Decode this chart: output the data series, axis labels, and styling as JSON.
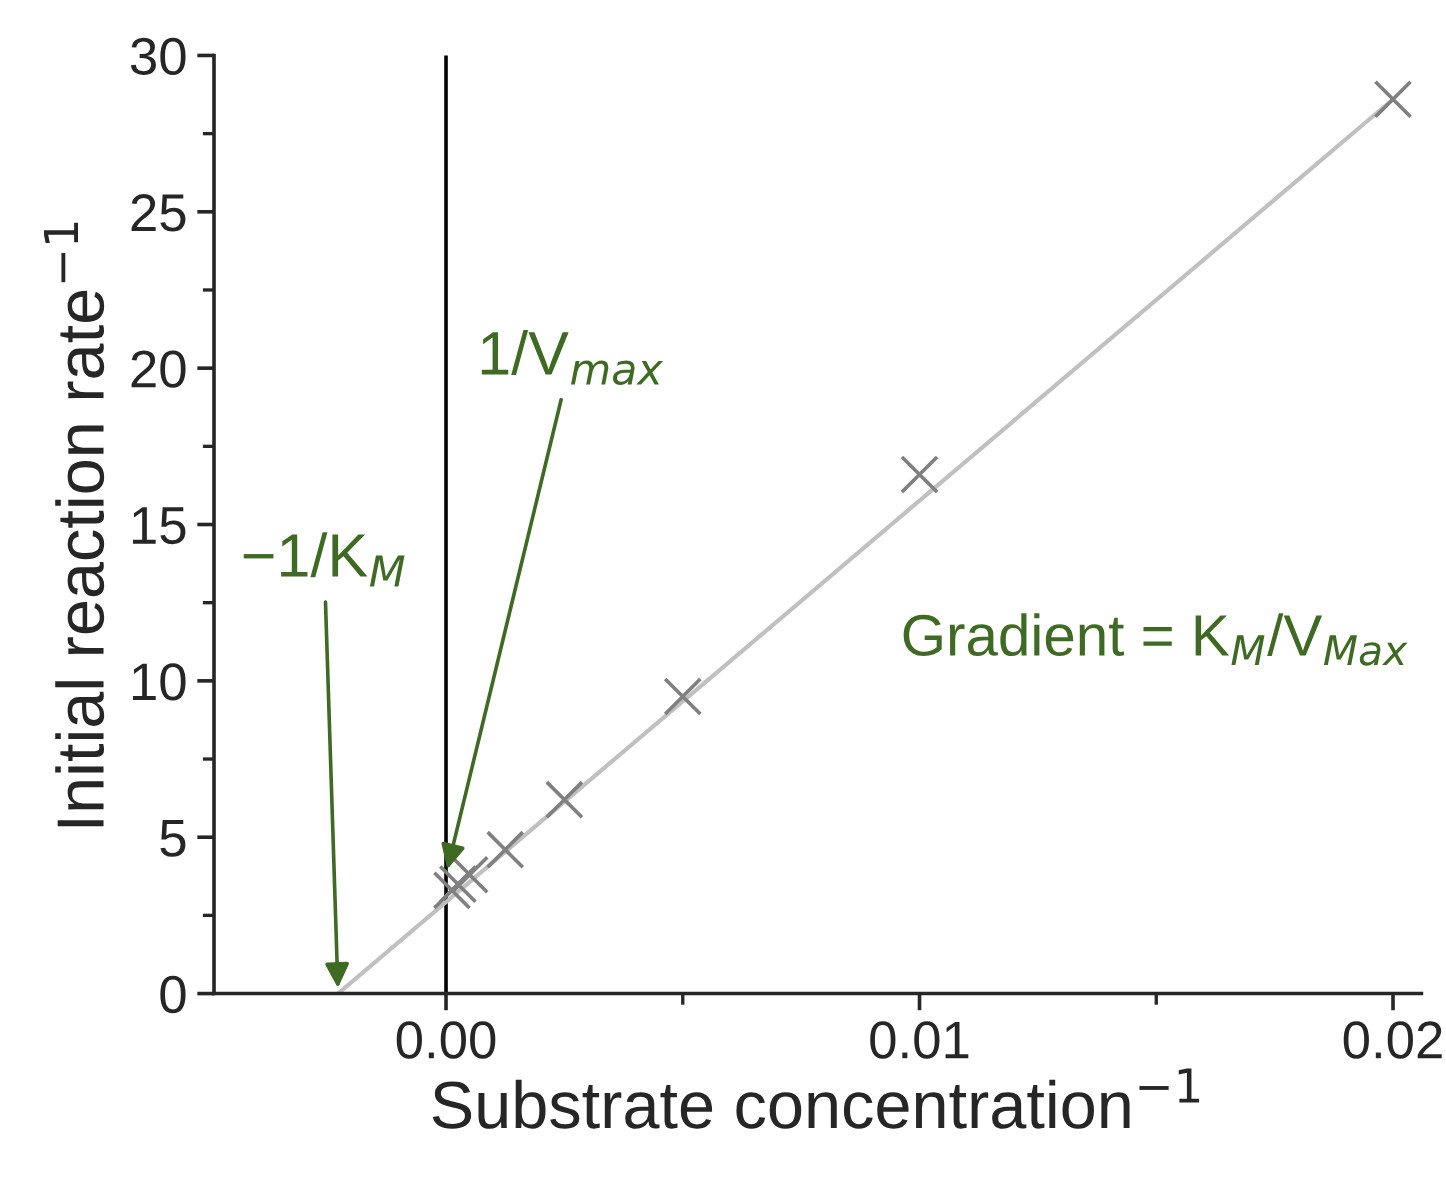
{
  "chart_data": {
    "type": "scatter",
    "xlabel": "Substrate concentration$^{−1}$",
    "ylabel": "Initial reaction rate$^{−1}$",
    "xlim": [
      -0.0049,
      0.0206
    ],
    "ylim": [
      0,
      30
    ],
    "xticks": [
      {
        "value": 0,
        "label": "0.00"
      },
      {
        "value": 0.01,
        "label": "0.01"
      },
      {
        "value": 0.02,
        "label": "0.02"
      }
    ],
    "yticks": [
      0,
      5,
      10,
      15,
      20,
      25,
      30
    ],
    "grid": false,
    "series": [
      {
        "type": "line",
        "color": "#c0c0c0",
        "x": [
          -0.00228,
          0.02
        ],
        "values": [
          0,
          28.6
        ],
        "marker": "none"
      },
      {
        "color": "#808080",
        "marker": "cross",
        "x": [
          0.000125,
          0.00025,
          0.0005,
          0.00125,
          0.0025,
          0.005,
          0.01,
          0.02
        ],
        "values": [
          3.3,
          3.5,
          3.8,
          4.6,
          6.2,
          9.5,
          16.6,
          28.6
        ]
      }
    ],
    "ref_lines": [
      {
        "axis": "x",
        "value": 0,
        "color": "#000000"
      }
    ],
    "annotations": [
      {
        "text": "−1/K$_{M}$",
        "x": -0.00228,
        "y": 0
      },
      {
        "text": "1/V$_{max}$",
        "x": 0,
        "y": 3.8
      },
      "Gradient = K$_{M}$/V$_{Max}$"
    ]
  }
}
